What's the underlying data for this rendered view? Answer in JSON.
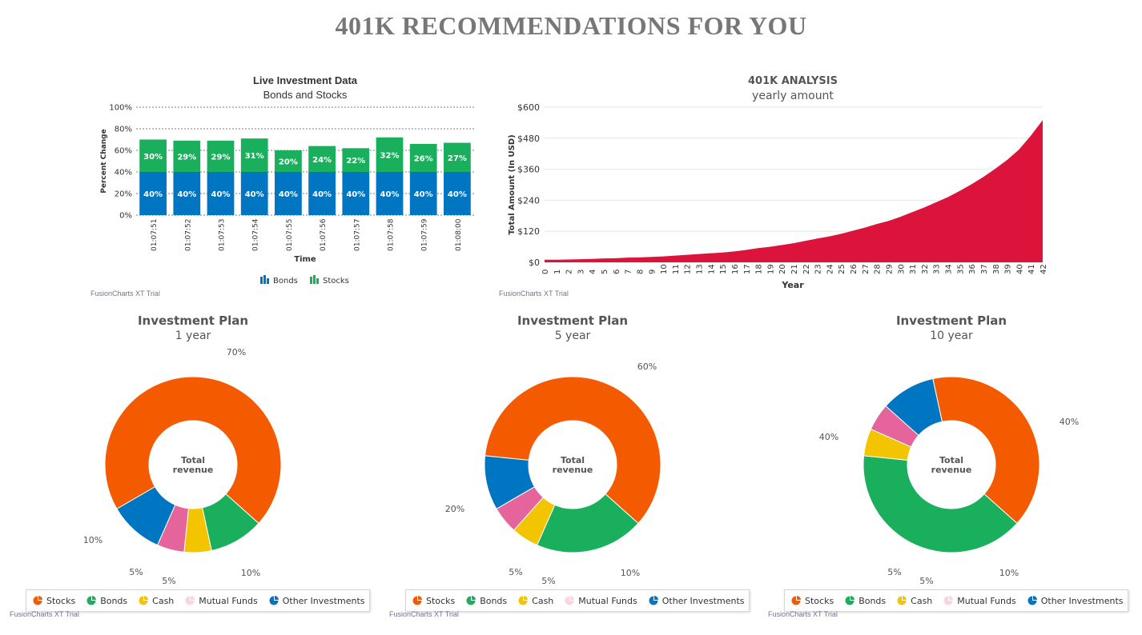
{
  "page": {
    "title": "401K RECOMMENDATIONS FOR YOU",
    "trial_text": "FusionCharts XT Trial"
  },
  "colors": {
    "bonds_bar": "#0075c2",
    "stocks_bar": "#1aaf5d",
    "area": "#dc143c",
    "stocks": "#f45b00",
    "bonds": "#1aaf5d",
    "cash": "#f2c500",
    "mutual_funds": "#e5649b",
    "other": "#0075c2"
  },
  "chart_data": [
    {
      "type": "bar",
      "stacked": true,
      "title": "Live Investment Data",
      "subtitle": "Bonds and Stocks",
      "xlabel": "Time",
      "ylabel": "Percent Change",
      "ylim": [
        0,
        100
      ],
      "yticks": [
        "0%",
        "20%",
        "40%",
        "60%",
        "80%",
        "100%"
      ],
      "categories": [
        "01:07:51",
        "01:07:52",
        "01:07:53",
        "01:07:54",
        "01:07:55",
        "01:07:56",
        "01:07:57",
        "01:07:58",
        "01:07:59",
        "01:08:00"
      ],
      "series": [
        {
          "name": "Bonds",
          "values": [
            40,
            40,
            40,
            40,
            40,
            40,
            40,
            40,
            40,
            40
          ]
        },
        {
          "name": "Stocks",
          "values": [
            30,
            29,
            29,
            31,
            20,
            24,
            22,
            32,
            26,
            27
          ]
        }
      ],
      "legend": "bottom"
    },
    {
      "type": "area",
      "title": "401K ANALYSIS",
      "subtitle": "yearly amount",
      "xlabel": "Year",
      "ylabel": "Total Amount (In USD)",
      "ylim": [
        0,
        600
      ],
      "yticks": [
        "$0",
        "$120",
        "$240",
        "$360",
        "$480",
        "$600"
      ],
      "x": [
        0,
        1,
        2,
        3,
        4,
        5,
        6,
        7,
        8,
        9,
        10,
        11,
        12,
        13,
        14,
        15,
        16,
        17,
        18,
        19,
        20,
        21,
        22,
        23,
        24,
        25,
        26,
        27,
        28,
        29,
        30,
        31,
        32,
        33,
        34,
        35,
        36,
        37,
        38,
        39,
        40,
        41,
        42
      ],
      "values": [
        10,
        10,
        11,
        12,
        13,
        15,
        16,
        18,
        19,
        21,
        23,
        26,
        29,
        32,
        35,
        38,
        42,
        48,
        55,
        60,
        67,
        74,
        83,
        92,
        100,
        110,
        122,
        134,
        148,
        160,
        176,
        194,
        212,
        232,
        252,
        276,
        302,
        330,
        362,
        396,
        436,
        490,
        550
      ]
    },
    {
      "type": "pie",
      "title": "Investment Plan",
      "subtitle": "1 year",
      "center_label": "Total revenue",
      "categories": [
        "Stocks",
        "Bonds",
        "Cash",
        "Mutual Funds",
        "Other Investments"
      ],
      "values": [
        70,
        10,
        5,
        5,
        10
      ],
      "labels": [
        "70%",
        "10%",
        "5%",
        "5%",
        "10%"
      ]
    },
    {
      "type": "pie",
      "title": "Investment Plan",
      "subtitle": "5 year",
      "center_label": "Total revenue",
      "categories": [
        "Stocks",
        "Bonds",
        "Cash",
        "Mutual Funds",
        "Other Investments"
      ],
      "values": [
        60,
        20,
        5,
        5,
        10
      ],
      "labels": [
        "60%",
        "20%",
        "5%",
        "5%",
        "10%"
      ]
    },
    {
      "type": "pie",
      "title": "Investment Plan",
      "subtitle": "10 year",
      "center_label": "Total revenue",
      "categories": [
        "Stocks",
        "Bonds",
        "Cash",
        "Mutual Funds",
        "Other Investments"
      ],
      "values": [
        40,
        40,
        5,
        5,
        10
      ],
      "labels": [
        "40%",
        "40%",
        "5%",
        "5%",
        "10%"
      ]
    }
  ]
}
